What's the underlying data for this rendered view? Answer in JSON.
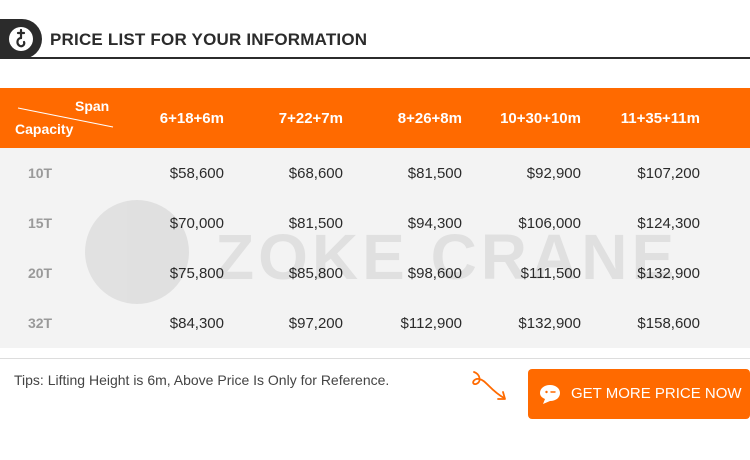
{
  "header": {
    "title": "PRICE LIST FOR YOUR INFORMATION",
    "logo_icon": "hook-icon"
  },
  "table": {
    "corner_top": "Span",
    "corner_bottom": "Capacity",
    "columns": [
      "6+18+6m",
      "7+22+7m",
      "8+26+8m",
      "10+30+10m",
      "11+35+11m"
    ],
    "rows": [
      {
        "capacity": "10T",
        "prices": [
          "$58,600",
          "$68,600",
          "$81,500",
          "$92,900",
          "$107,200"
        ]
      },
      {
        "capacity": "15T",
        "prices": [
          "$70,000",
          "$81,500",
          "$94,300",
          "$106,000",
          "$124,300"
        ]
      },
      {
        "capacity": "20T",
        "prices": [
          "$75,800",
          "$85,800",
          "$98,600",
          "$111,500",
          "$132,900"
        ]
      },
      {
        "capacity": "32T",
        "prices": [
          "$84,300",
          "$97,200",
          "$112,900",
          "$132,900",
          "$158,600"
        ]
      }
    ]
  },
  "watermark": {
    "text": "ZOKE CRANE"
  },
  "footer": {
    "tips": "Tips: Lifting Height is 6m, Above Price Is Only for Reference.",
    "cta_label": "GET MORE PRICE NOW"
  },
  "colors": {
    "accent": "#ff6a00",
    "dark": "#2b2b2b",
    "row_bg": "#f3f3f3"
  }
}
